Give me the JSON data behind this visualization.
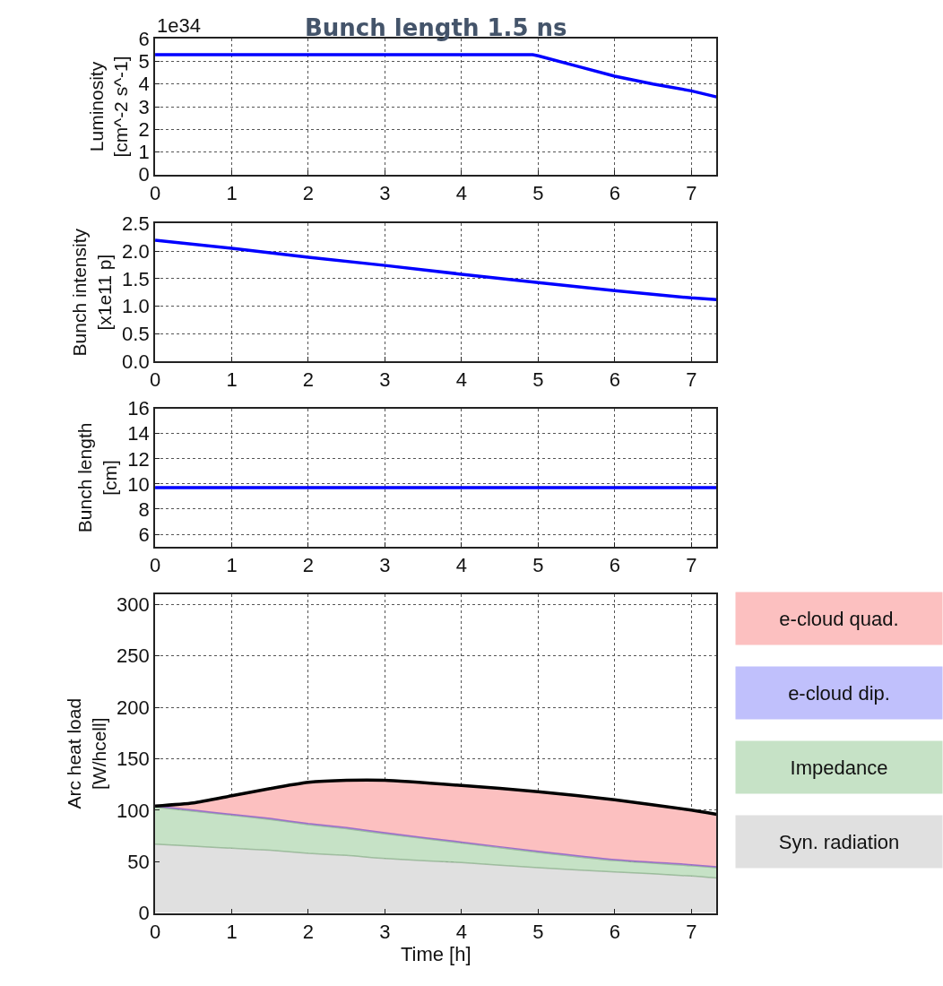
{
  "chart_data": [
    {
      "type": "line",
      "title": "Bunch length 1.5 ns",
      "ylabel": "Luminosity\n[cm^-2 s^-1]",
      "annotations": [
        "1e34"
      ],
      "x": [
        0,
        1,
        2,
        3,
        4,
        4.93,
        5,
        5.5,
        6,
        6.5,
        7,
        7.33
      ],
      "values": [
        5.3,
        5.3,
        5.3,
        5.3,
        5.3,
        5.3,
        5.25,
        4.8,
        4.35,
        4.0,
        3.7,
        3.43
      ],
      "color": "#0000ff",
      "xlim": [
        0,
        7.33
      ],
      "xticks": [
        0,
        1,
        2,
        3,
        4,
        5,
        6,
        7
      ],
      "ylim": [
        0,
        6
      ],
      "yticks": [
        0,
        1,
        2,
        3,
        4,
        5,
        6
      ],
      "grid": true,
      "line_style": "solid",
      "marker": "none"
    },
    {
      "type": "line",
      "ylabel": "Bunch intensity\n[x1e11 p]",
      "x": [
        0,
        1,
        2,
        3,
        4,
        5,
        6,
        7,
        7.33
      ],
      "values": [
        2.2,
        2.05,
        1.89,
        1.74,
        1.58,
        1.43,
        1.28,
        1.15,
        1.12
      ],
      "color": "#0000ff",
      "xlim": [
        0,
        7.33
      ],
      "xticks": [
        0,
        1,
        2,
        3,
        4,
        5,
        6,
        7
      ],
      "ylim": [
        0,
        2.5
      ],
      "yticks": [
        {
          "value": 0,
          "label": "0.0"
        },
        {
          "value": 0.5,
          "label": "0.5"
        },
        {
          "value": 1,
          "label": "1.0"
        },
        {
          "value": 1.5,
          "label": "1.5"
        },
        {
          "value": 2,
          "label": "2.0"
        },
        {
          "value": 2.5,
          "label": "2.5"
        }
      ],
      "grid": true,
      "line_style": "solid",
      "marker": "none"
    },
    {
      "type": "line",
      "ylabel": "Bunch length\n[cm]",
      "x": [
        0,
        7.33
      ],
      "values": [
        9.7,
        9.7
      ],
      "color": "#0000ff",
      "xlim": [
        0,
        7.33
      ],
      "xticks": [
        0,
        1,
        2,
        3,
        4,
        5,
        6,
        7
      ],
      "ylim": [
        5,
        16
      ],
      "yticks": [
        6,
        8,
        10,
        12,
        14,
        16
      ],
      "grid": true,
      "line_style": "solid",
      "marker": "none"
    },
    {
      "type": "area",
      "stacked": true,
      "ylabel": "Arc heat load\n[W/hcell]",
      "xlabel": "Time [h]",
      "x": [
        0,
        0.5,
        1,
        1.5,
        2,
        2.5,
        3,
        4,
        5,
        6,
        7,
        7.33
      ],
      "series": [
        {
          "name": "Syn. radiation",
          "color": "#e0e0e0",
          "values": [
            67,
            65,
            63,
            61,
            58,
            56,
            53,
            49,
            44,
            40,
            36,
            34
          ]
        },
        {
          "name": "Impedance",
          "color": "#c6e2c6",
          "values": [
            36,
            34,
            32,
            30,
            28,
            26,
            24,
            19,
            15,
            11,
            10,
            10
          ]
        },
        {
          "name": "e-cloud dip.",
          "color": "#c0c0fc",
          "values": [
            1,
            1,
            1,
            1,
            1,
            1,
            1,
            1,
            1,
            1,
            1,
            1
          ]
        },
        {
          "name": "e-cloud quad.",
          "color": "#fcc0c0",
          "values": [
            0,
            7,
            18,
            29,
            40,
            46,
            51,
            55,
            58,
            58,
            53,
            51
          ]
        }
      ],
      "xlim": [
        0,
        7.33
      ],
      "xticks": [
        0,
        1,
        2,
        3,
        4,
        5,
        6,
        7
      ],
      "ylim": [
        0,
        310
      ],
      "yticks": [
        0,
        50,
        100,
        150,
        200,
        250,
        300
      ],
      "grid": true,
      "legend": "right"
    }
  ]
}
